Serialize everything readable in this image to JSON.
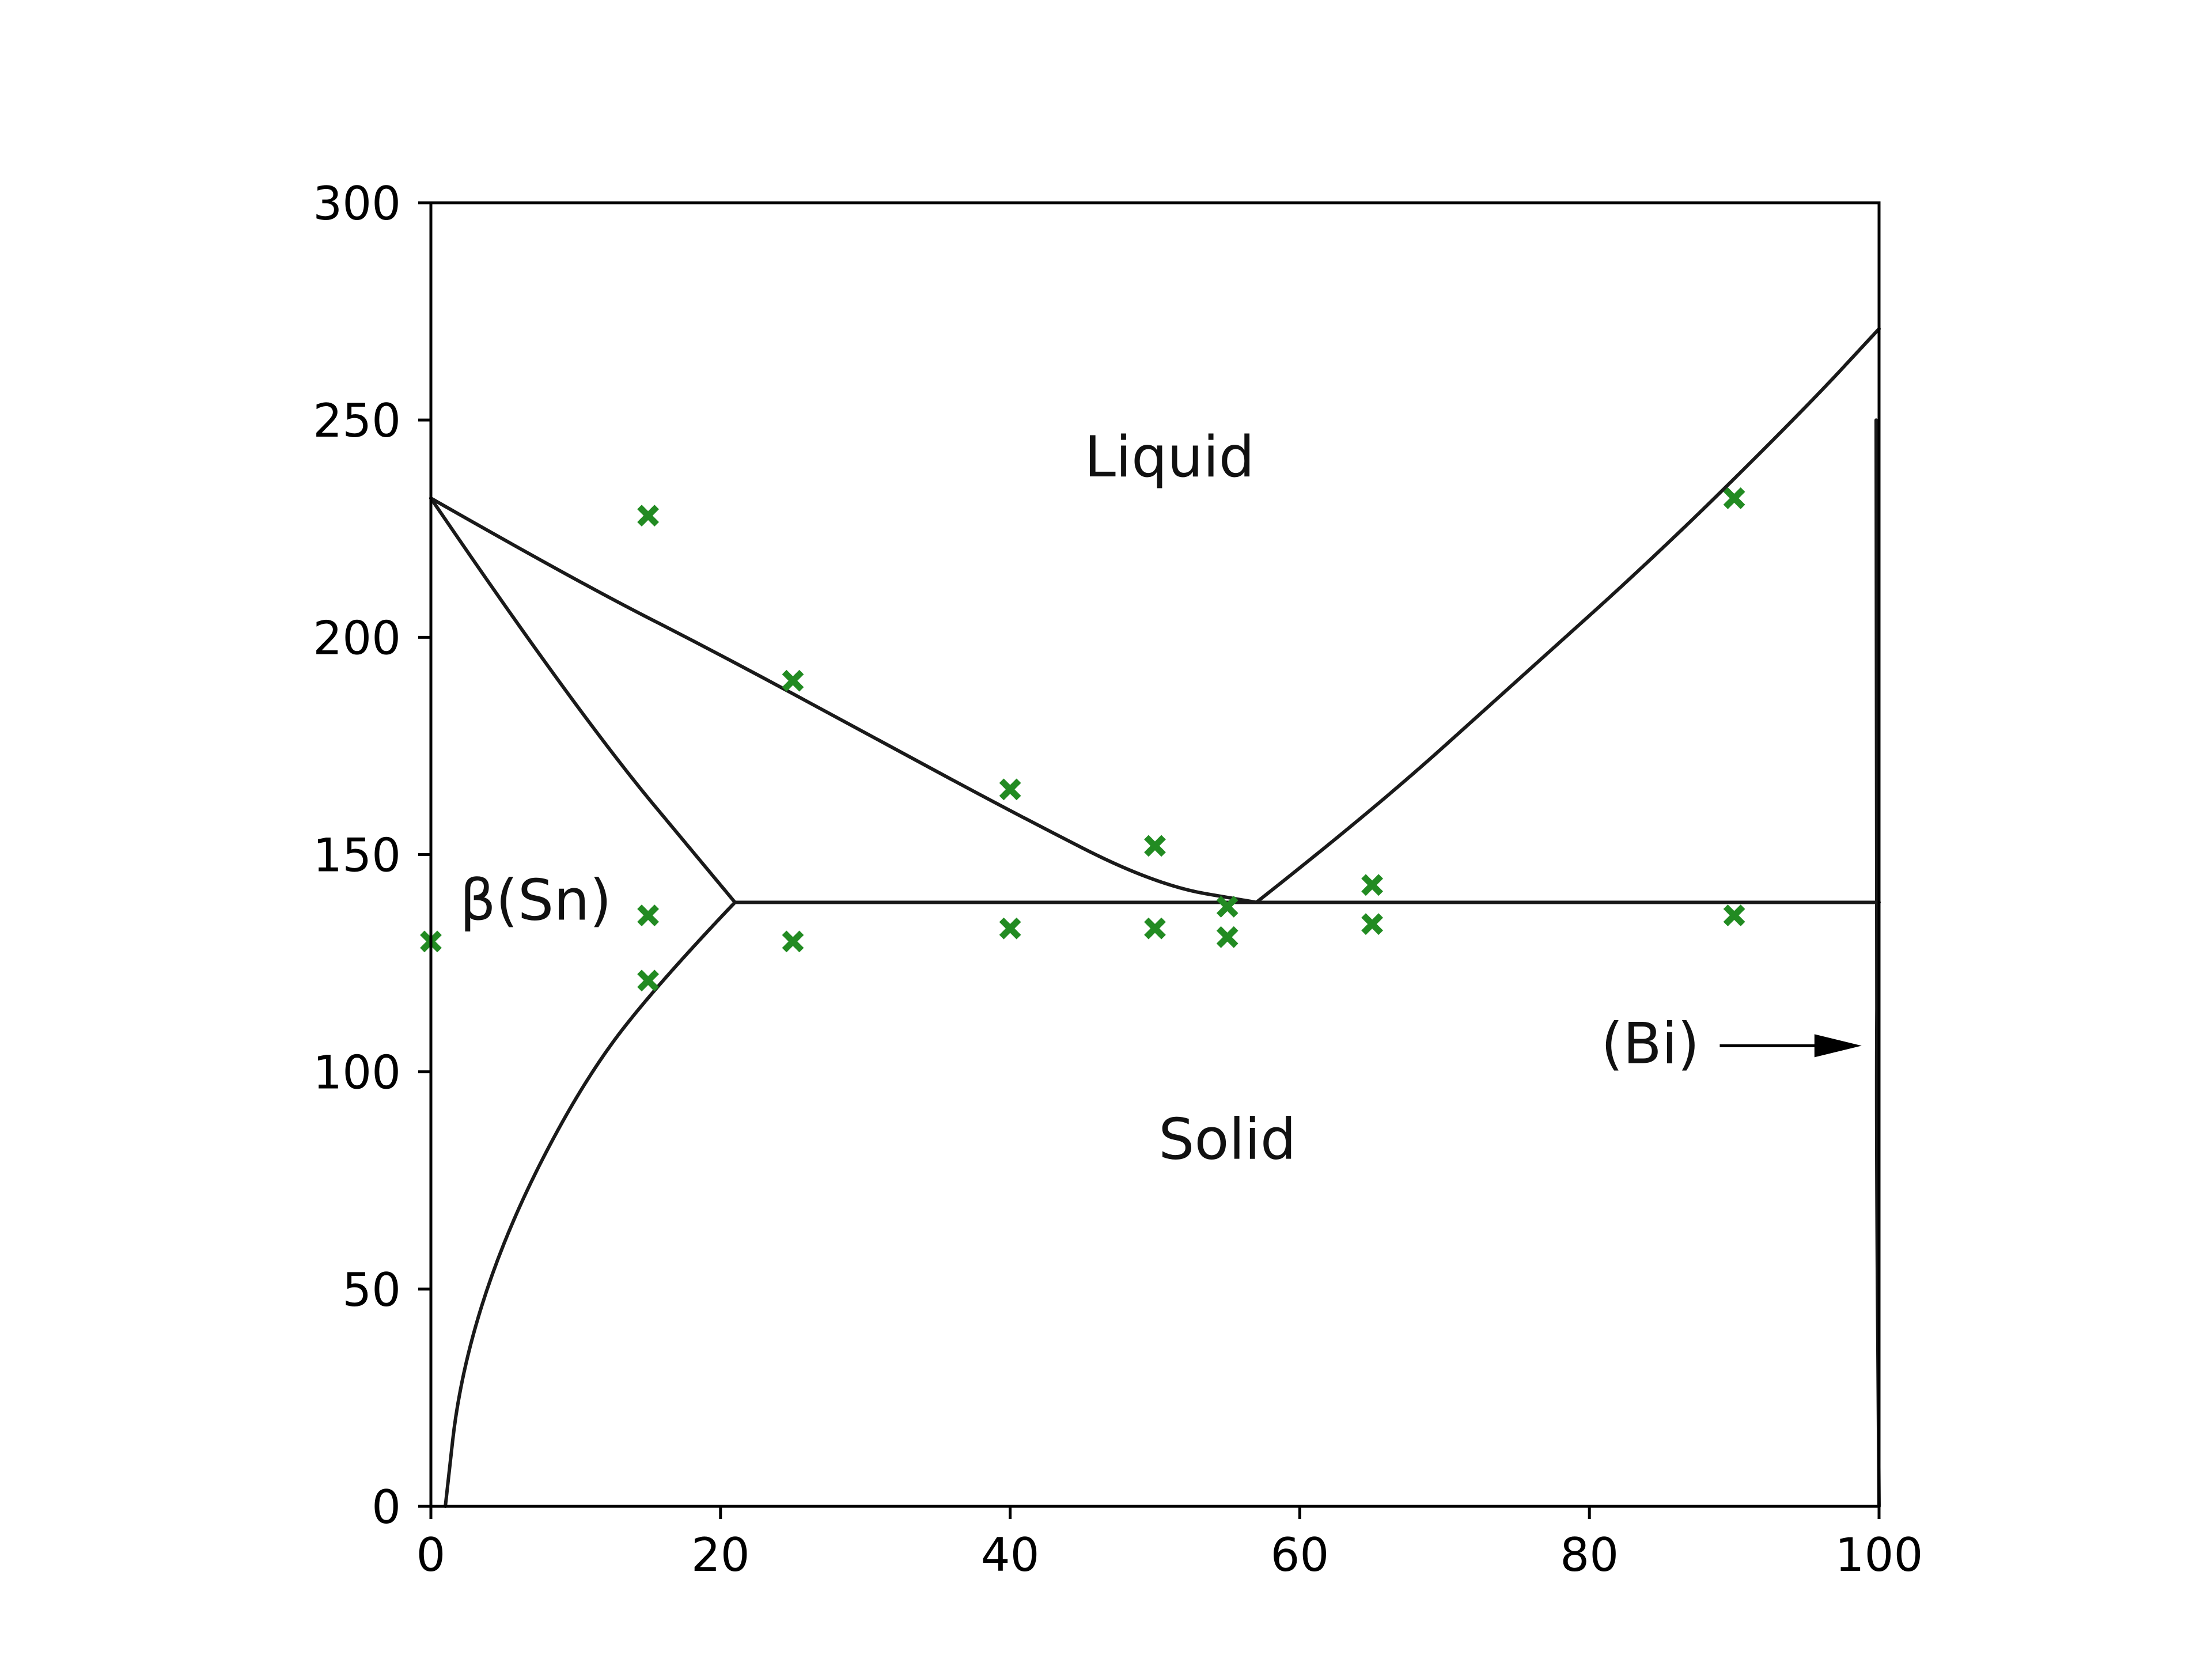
{
  "chart_data": {
    "type": "scatter",
    "title": "",
    "xlabel": "",
    "ylabel": "",
    "xlim": [
      0,
      100
    ],
    "ylim": [
      0,
      300
    ],
    "x_ticks": [
      0,
      20,
      40,
      60,
      80,
      100
    ],
    "y_ticks": [
      0,
      50,
      100,
      150,
      200,
      250,
      300
    ],
    "grid": false,
    "region_labels": {
      "liquid": "Liquid",
      "solid": "Solid",
      "beta_sn": "β(Sn)",
      "bi": "(Bi)"
    },
    "marker_color": "#228b22",
    "marker_symbol": "x",
    "line_color": "#1a1a1a",
    "series": [
      {
        "values": [
          {
            "x": 0,
            "y": 130
          },
          {
            "x": 15,
            "y": 228
          },
          {
            "x": 15,
            "y": 136
          },
          {
            "x": 15,
            "y": 121
          },
          {
            "x": 25,
            "y": 190
          },
          {
            "x": 25,
            "y": 130
          },
          {
            "x": 40,
            "y": 165
          },
          {
            "x": 40,
            "y": 133
          },
          {
            "x": 50,
            "y": 152
          },
          {
            "x": 50,
            "y": 133
          },
          {
            "x": 55,
            "y": 138
          },
          {
            "x": 55,
            "y": 131
          },
          {
            "x": 65,
            "y": 143
          },
          {
            "x": 65,
            "y": 134
          },
          {
            "x": 90,
            "y": 232
          },
          {
            "x": 90,
            "y": 136
          }
        ]
      }
    ],
    "phase_boundaries": [
      {
        "name": "liquidus-sn",
        "points": [
          [
            0,
            232
          ],
          [
            10,
            213
          ],
          [
            20,
            196
          ],
          [
            30,
            178
          ],
          [
            40,
            160
          ],
          [
            50,
            143
          ],
          [
            57,
            139
          ]
        ]
      },
      {
        "name": "liquidus-bi",
        "points": [
          [
            57,
            139
          ],
          [
            65,
            160
          ],
          [
            75,
            190
          ],
          [
            85,
            220
          ],
          [
            95,
            253
          ],
          [
            100,
            271
          ]
        ]
      },
      {
        "name": "solidus-sn",
        "points": [
          [
            0,
            232
          ],
          [
            10,
            183
          ],
          [
            21,
            139
          ]
        ]
      },
      {
        "name": "eutectic-line",
        "points": [
          [
            21,
            139
          ],
          [
            100,
            139
          ]
        ]
      },
      {
        "name": "solvus-sn",
        "points": [
          [
            21,
            139
          ],
          [
            15,
            118
          ],
          [
            10,
            95
          ],
          [
            5,
            62
          ],
          [
            2,
            30
          ],
          [
            1,
            0
          ]
        ]
      },
      {
        "name": "bi-boundary",
        "points": [
          [
            99.8,
            250
          ],
          [
            99.9,
            139
          ],
          [
            99.8,
            90
          ],
          [
            100,
            0
          ]
        ]
      }
    ]
  }
}
